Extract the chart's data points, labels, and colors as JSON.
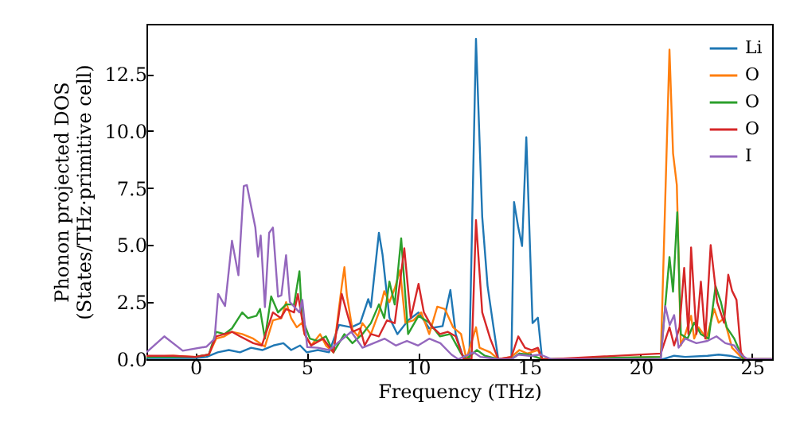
{
  "chart_data": {
    "type": "line",
    "xlabel": "Frequency (THz)",
    "ylabel": "Phonon projected DOS\n(States/THz·primitive cell)",
    "xlim": [
      -2.2,
      25.9
    ],
    "ylim": [
      0,
      14.7
    ],
    "xticks": [
      0,
      5,
      10,
      15,
      20,
      25
    ],
    "yticks": [
      {
        "value": 0,
        "label": "0.0"
      },
      2.5,
      {
        "value": 5,
        "label": "5.0"
      },
      7.5,
      {
        "value": 10,
        "label": "10.0"
      },
      12.5
    ],
    "grid": false,
    "legend": "top right",
    "series": [
      {
        "name": "Li",
        "color": "#1f77b4",
        "x": [
          -2.2,
          -1,
          0,
          0.5,
          1,
          1.5,
          2,
          2.5,
          3,
          3.5,
          3.95,
          4.3,
          4.7,
          5,
          5.5,
          6,
          6.45,
          7,
          7.4,
          7.76,
          7.88,
          8.24,
          8.4,
          8.71,
          9.07,
          9.55,
          10.02,
          10.5,
          11.1,
          11.45,
          11.69,
          12.05,
          12.3,
          12.6,
          12.88,
          13.12,
          13.36,
          13.6,
          14.19,
          14.31,
          14.5,
          14.67,
          14.86,
          15.14,
          15.38,
          15.57,
          16,
          21,
          21.5,
          22,
          23,
          23.5,
          24,
          24.6,
          25.9
        ],
        "values": [
          0.05,
          0.05,
          0.05,
          0.1,
          0.3,
          0.4,
          0.3,
          0.5,
          0.4,
          0.6,
          0.7,
          0.4,
          0.6,
          0.3,
          0.4,
          0.3,
          1.5,
          1.4,
          1.58,
          2.63,
          2.28,
          5.54,
          4.6,
          1.82,
          1.1,
          1.7,
          2.05,
          1.35,
          1.45,
          3.03,
          1.1,
          0,
          0,
          14.04,
          6.24,
          3.21,
          1.58,
          0,
          0,
          6.89,
          5.77,
          4.96,
          9.73,
          1.58,
          1.82,
          0,
          0,
          0,
          0.15,
          0.1,
          0.15,
          0.2,
          0.15,
          0,
          0
        ]
      },
      {
        "name": "O",
        "color": "#ff7f0e",
        "x": [
          -2.2,
          -1,
          0,
          0.6,
          0.93,
          1.3,
          1.64,
          2.1,
          2.6,
          3.12,
          3.48,
          3.86,
          4.07,
          4.3,
          4.55,
          4.79,
          4.9,
          5.2,
          5.6,
          5.86,
          6.2,
          6.57,
          6.69,
          6.8,
          7.05,
          7.3,
          7.5,
          7.88,
          8.24,
          8.48,
          8.71,
          8.95,
          9.19,
          9.43,
          9.79,
          10.14,
          10.5,
          10.86,
          11.2,
          11.57,
          11.93,
          12.17,
          12.6,
          12.76,
          13.24,
          13.6,
          14.19,
          14.55,
          14.9,
          15.38,
          15.57,
          16,
          20.9,
          21.29,
          21.45,
          21.62,
          21.8,
          22.0,
          22.26,
          22.4,
          22.6,
          22.95,
          23.3,
          23.5,
          23.74,
          24.1,
          24.6,
          25.9
        ],
        "values": [
          0.1,
          0.15,
          0.1,
          0.2,
          0.9,
          1.0,
          1.2,
          1.1,
          0.9,
          0.55,
          1.7,
          1.8,
          2.5,
          1.8,
          1.4,
          1.6,
          1.1,
          0.6,
          1.1,
          0.6,
          0.3,
          3.2,
          4.03,
          2.8,
          1.3,
          1.0,
          1.58,
          1.1,
          2.05,
          2.98,
          2.5,
          3.1,
          3.9,
          1.6,
          1.7,
          2.05,
          1.1,
          2.3,
          2.2,
          1.4,
          1.1,
          0,
          1.4,
          0.5,
          0.3,
          0,
          0.1,
          0.4,
          0.25,
          0.4,
          0,
          0,
          0.1,
          13.57,
          9.03,
          7.63,
          0.6,
          1.1,
          1.9,
          0.9,
          1.4,
          0.9,
          2.2,
          1.6,
          1.8,
          0.5,
          0,
          0
        ]
      },
      {
        "name": "O",
        "color": "#2ca02c",
        "x": [
          -2.2,
          -1,
          0,
          0.6,
          0.93,
          1.3,
          1.64,
          2.1,
          2.36,
          2.74,
          2.9,
          3.12,
          3.4,
          3.71,
          4.07,
          4.43,
          4.67,
          4.79,
          5.14,
          5.5,
          5.86,
          6.2,
          6.69,
          7.05,
          7.5,
          7.88,
          8.24,
          8.48,
          8.71,
          8.95,
          9.24,
          9.55,
          10.02,
          10.5,
          10.98,
          11.45,
          11.93,
          12.17,
          12.64,
          13.0,
          13.6,
          14.19,
          14.55,
          15.0,
          15.57,
          16,
          20.9,
          21.29,
          21.45,
          21.64,
          21.8,
          22.1,
          22.4,
          22.7,
          23.05,
          23.36,
          23.6,
          23.86,
          24.2,
          24.6,
          25.9
        ],
        "values": [
          0.1,
          0.1,
          0.1,
          0.2,
          1.2,
          1.1,
          1.35,
          2.05,
          1.8,
          1.9,
          2.2,
          0.9,
          2.75,
          2.05,
          2.4,
          2.4,
          3.85,
          1.8,
          0.9,
          0.8,
          1.0,
          0.3,
          1.1,
          0.7,
          1.1,
          1.58,
          2.4,
          1.8,
          3.4,
          2.4,
          5.3,
          1.1,
          1.9,
          1.6,
          1.0,
          1.1,
          0.25,
          0,
          0.4,
          0.15,
          0,
          0,
          0.25,
          0.2,
          0,
          0,
          0.1,
          4.48,
          2.96,
          6.44,
          1.1,
          0.9,
          1.6,
          1.1,
          0.9,
          3.2,
          2.5,
          1.4,
          0.9,
          0,
          0
        ]
      },
      {
        "name": "O",
        "color": "#d62728",
        "x": [
          -2.2,
          -1,
          0,
          0.6,
          0.93,
          1.64,
          2.0,
          2.6,
          2.98,
          3.48,
          3.83,
          4.07,
          4.43,
          4.6,
          4.9,
          5.2,
          5.74,
          6.2,
          6.57,
          6.8,
          7.05,
          7.4,
          7.6,
          7.88,
          8.24,
          8.6,
          8.95,
          9.38,
          9.67,
          10.02,
          10.26,
          10.6,
          10.98,
          11.33,
          11.69,
          12.05,
          12.4,
          12.6,
          12.88,
          13.24,
          13.6,
          14.19,
          14.5,
          14.8,
          15.1,
          15.38,
          15.57,
          16,
          20.9,
          21.29,
          21.5,
          21.74,
          21.95,
          22.14,
          22.26,
          22.5,
          22.7,
          22.9,
          23.14,
          23.43,
          23.74,
          23.93,
          24.1,
          24.3,
          24.5,
          24.7,
          25.9
        ],
        "values": [
          0.15,
          0.15,
          0.1,
          0.2,
          1.0,
          1.2,
          1.0,
          0.7,
          0.6,
          2.05,
          1.8,
          2.2,
          2.05,
          2.86,
          1.1,
          0.6,
          0.9,
          0.3,
          2.86,
          2.05,
          1.2,
          1.35,
          0.6,
          1.1,
          1.0,
          1.7,
          1.58,
          4.86,
          1.8,
          3.3,
          2.05,
          1.45,
          1.1,
          1.2,
          1.0,
          0,
          0,
          6.1,
          2.05,
          0.9,
          0,
          0.1,
          1.0,
          0.5,
          0.4,
          0.5,
          0,
          0,
          0.25,
          1.4,
          0.6,
          1.4,
          4.0,
          1.1,
          4.9,
          1.1,
          3.4,
          0.9,
          5.0,
          2.5,
          1.6,
          3.7,
          3.0,
          2.6,
          0.3,
          0,
          0
        ]
      },
      {
        "name": "I",
        "color": "#9467bd",
        "x": [
          -2.2,
          -1.4,
          -0.57,
          0.5,
          0.86,
          1.02,
          1.33,
          1.64,
          1.93,
          2.17,
          2.31,
          2.69,
          2.81,
          2.93,
          3.12,
          3.31,
          3.48,
          3.71,
          3.86,
          4.07,
          4.24,
          4.67,
          4.8,
          5.02,
          5.5,
          6.0,
          6.5,
          7.0,
          7.5,
          8.0,
          8.5,
          9.0,
          9.5,
          10.0,
          10.5,
          11.0,
          11.5,
          11.8,
          12.5,
          12.8,
          13.2,
          13.6,
          14.2,
          14.5,
          15.0,
          15.5,
          16,
          20.9,
          21.1,
          21.3,
          21.5,
          21.7,
          22.0,
          22.5,
          23.0,
          23.4,
          23.8,
          24.2,
          24.5,
          24.8,
          25.9
        ],
        "values": [
          0.3,
          1.0,
          0.37,
          0.55,
          0.89,
          2.86,
          2.33,
          5.19,
          3.68,
          7.59,
          7.63,
          5.77,
          4.49,
          5.42,
          2.28,
          5.54,
          5.77,
          2.74,
          2.8,
          4.56,
          2.51,
          2.05,
          2.6,
          0.53,
          0.5,
          0.4,
          0.8,
          1.2,
          0.5,
          0.7,
          0.9,
          0.6,
          0.8,
          0.6,
          0.9,
          0.7,
          0.2,
          0,
          0.3,
          0.1,
          0.05,
          0,
          0,
          0.2,
          0.15,
          0.2,
          0,
          0,
          2.33,
          1.5,
          1.93,
          0.5,
          0.9,
          0.7,
          0.8,
          1.0,
          0.7,
          0.6,
          0.2,
          0,
          0
        ]
      }
    ]
  }
}
